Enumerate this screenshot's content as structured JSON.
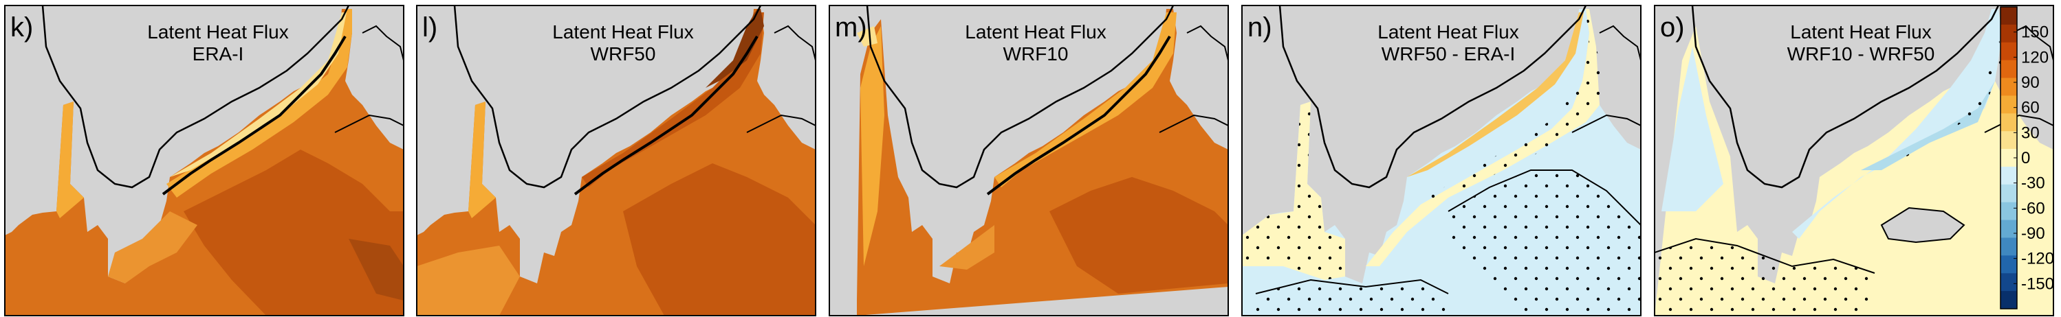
{
  "figure": {
    "panels": [
      {
        "letter": "k)",
        "title_line1": "Latent Heat Flux",
        "title_line2": "ERA-I",
        "kind": "flux"
      },
      {
        "letter": "l)",
        "title_line1": "Latent Heat Flux",
        "title_line2": "WRF50",
        "kind": "flux"
      },
      {
        "letter": "m)",
        "title_line1": "Latent Heat Flux",
        "title_line2": "WRF10",
        "kind": "flux"
      },
      {
        "letter": "n)",
        "title_line1": "Latent Heat Flux",
        "title_line2": "WRF50 - ERA-I",
        "kind": "diff"
      },
      {
        "letter": "o)",
        "title_line1": "Latent Heat Flux",
        "title_line2": "WRF10 - WRF50",
        "kind": "diff"
      }
    ],
    "colorbar": {
      "labels": [
        "150",
        "120",
        "90",
        "60",
        "30",
        "0",
        "-30",
        "-60",
        "-90",
        "-120",
        "-150"
      ],
      "colors": [
        "#7f2704",
        "#a63603",
        "#c94a07",
        "#e0670f",
        "#ee8a1e",
        "#f5ab36",
        "#f8c55a",
        "#fbe08e",
        "#fff7c0",
        "#d3eef8",
        "#b0dcec",
        "#8ac6e0",
        "#63aad2",
        "#3f88c0",
        "#2166ac",
        "#12478c",
        "#08306b"
      ]
    },
    "colors": {
      "land": "#d3d3d3",
      "flux_base": "#d9711a",
      "flux_dark": "#c4580f",
      "flux_light": "#eb9430",
      "diff_neg": "#d3eef8",
      "diff_pos": "#fff7c0"
    }
  }
}
